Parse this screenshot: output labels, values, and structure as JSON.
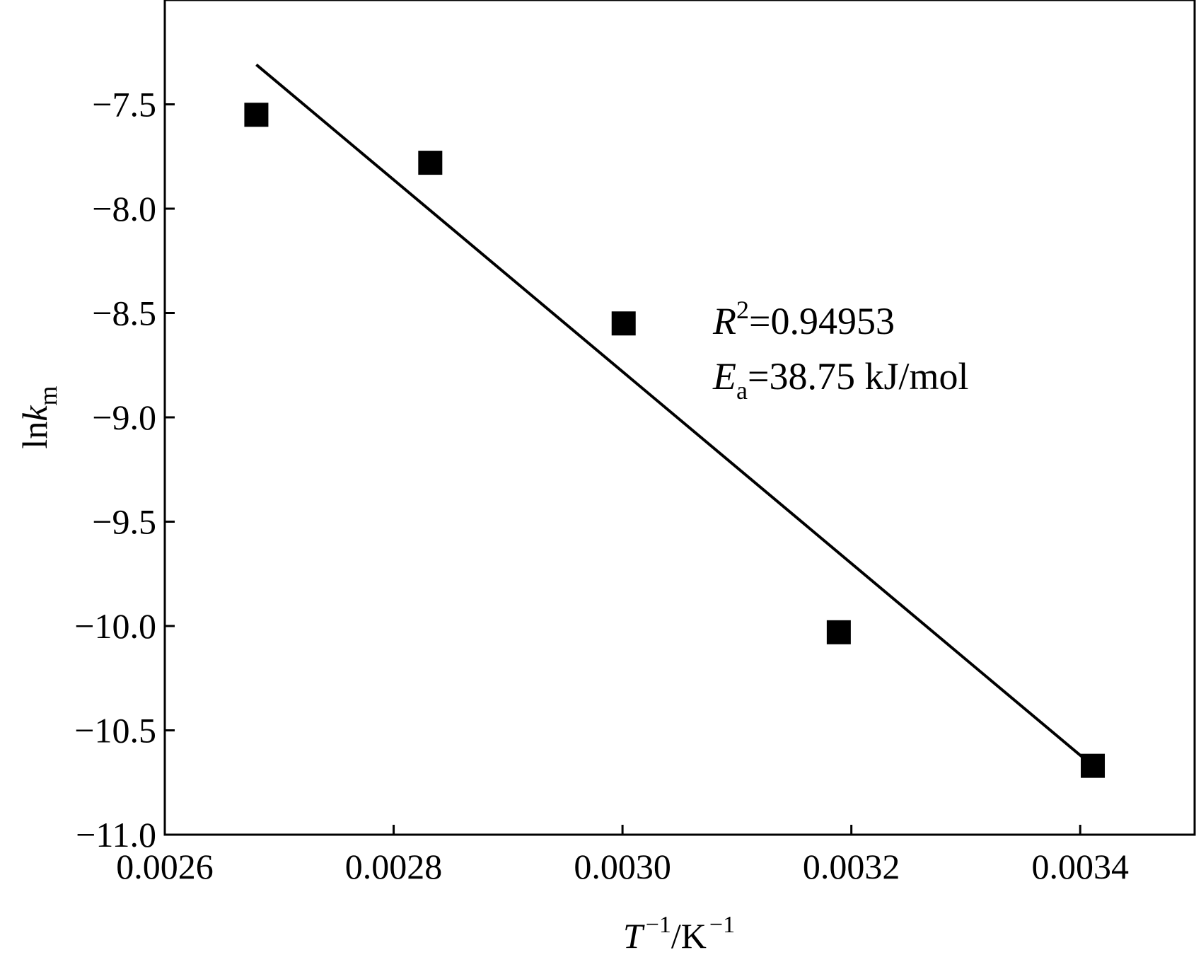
{
  "chart_data": {
    "type": "scatter",
    "xlim": [
      0.0026,
      0.0035
    ],
    "ylim": [
      -11.0,
      -7.0
    ],
    "x_ticks": [
      0.0026,
      0.0028,
      0.003,
      0.0032,
      0.0034
    ],
    "x_tick_labels": [
      "0.0026",
      "0.0028",
      "0.0030",
      "0.0032",
      "0.0034"
    ],
    "y_ticks": [
      -7.5,
      -8.0,
      -8.5,
      -9.0,
      -9.5,
      -10.0,
      -10.5,
      -11.0
    ],
    "y_tick_labels": [
      "−7.5",
      "−8.0",
      "−8.5",
      "−9.0",
      "−9.5",
      "−10.0",
      "−10.5",
      "−11.0"
    ],
    "xlabel": {
      "base": "T",
      "sup1": "−1",
      "mid": "/K",
      "sup2": "−1"
    },
    "ylabel": {
      "base": "ln",
      "italic": "k",
      "sub": "m"
    },
    "series": [
      {
        "marker": "square",
        "color": "#000000",
        "x": [
          0.00268,
          0.002832,
          0.003001,
          0.003189,
          0.003411
        ],
        "y": [
          -7.55,
          -7.78,
          -8.55,
          -10.03,
          -10.67
        ]
      }
    ],
    "fit_line": {
      "x": [
        0.00268,
        0.003411
      ],
      "y": [
        -7.31,
        -10.67
      ],
      "color": "#000000"
    },
    "annotations": {
      "r2_symbol": "R",
      "r2_sup": "2",
      "r2_value": "=0.94953",
      "ea_symbol": "E",
      "ea_sub": "a",
      "ea_value": "=38.75 kJ/mol"
    },
    "grid": false,
    "legend": "none"
  }
}
